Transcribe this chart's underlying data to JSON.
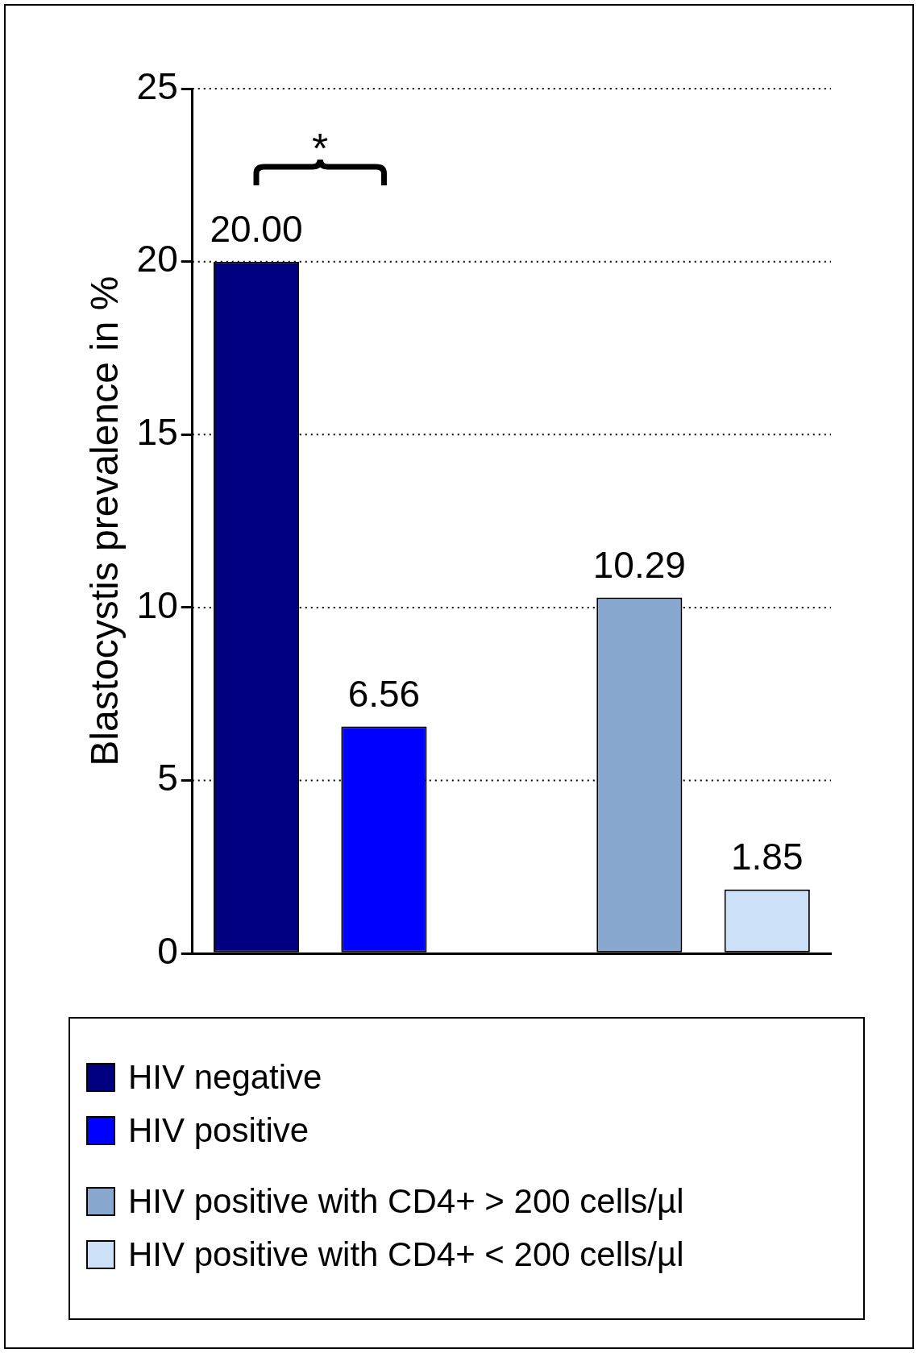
{
  "chart_data": {
    "type": "bar",
    "ylabel": "Blastocystis prevalence in %",
    "categories": [
      null,
      null,
      null,
      null,
      null
    ],
    "series": [
      {
        "name": "HIV negative",
        "color": "#000080",
        "values": [
          20,
          null,
          null,
          null,
          null
        ],
        "value_labels": [
          "20.00",
          null,
          null,
          null,
          null
        ]
      },
      {
        "name": "HIV positive",
        "color": "#0000ff",
        "values": [
          null,
          6.56,
          null,
          null,
          null
        ],
        "value_labels": [
          null,
          "6.56",
          null,
          null,
          null
        ]
      },
      {
        "name": "HIV positive with CD4+ > 200 cells/µl",
        "color": "#88a8d0",
        "values": [
          null,
          null,
          null,
          10.29,
          null
        ],
        "value_labels": [
          null,
          null,
          null,
          "10.29",
          null
        ]
      },
      {
        "name": "HIV positive with CD4+ < 200 cells/µl",
        "color": "#cce0f8",
        "values": [
          null,
          null,
          null,
          null,
          1.85
        ],
        "value_labels": [
          null,
          null,
          null,
          null,
          "1.85"
        ]
      }
    ],
    "ylim": [
      0,
      25
    ],
    "yticks": [
      0,
      5,
      10,
      15,
      20,
      25
    ],
    "grid": "y",
    "legend": "bottom",
    "annotations": [
      "*"
    ]
  }
}
